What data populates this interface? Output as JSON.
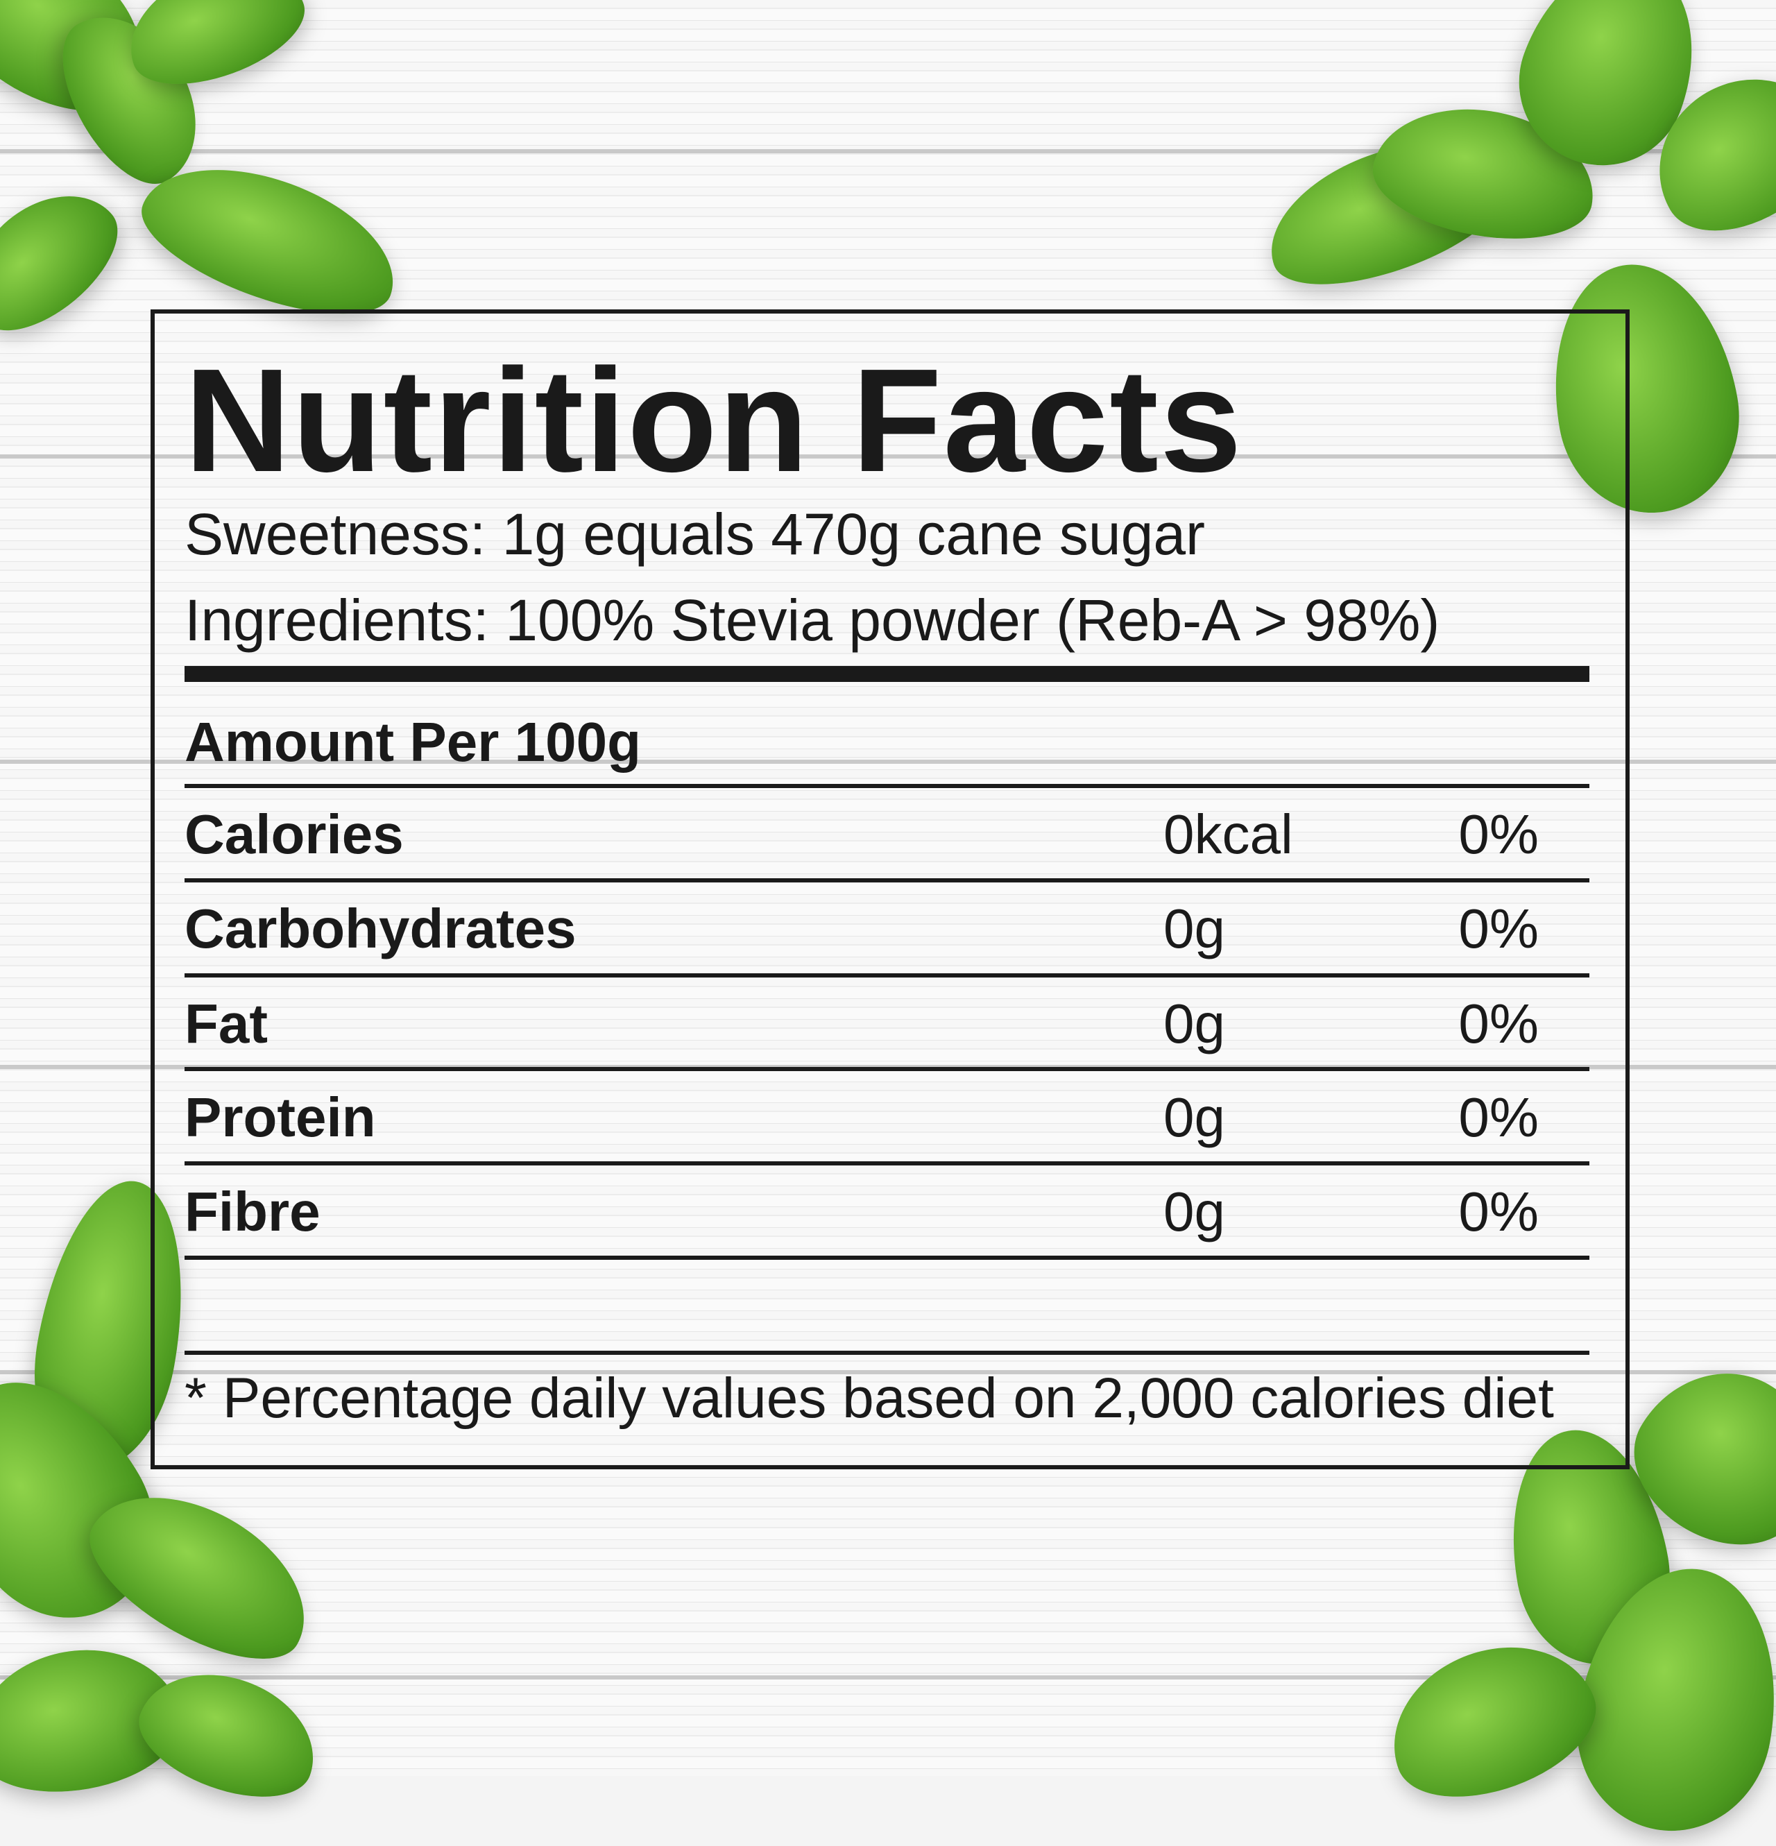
{
  "label": {
    "title": "Nutrition Facts",
    "sweetness": "Sweetness: 1g equals 470g cane sugar",
    "ingredients": "Ingredients: 100% Stevia powder (Reb-A > 98%)",
    "amount_per": "Amount Per 100g",
    "rows": [
      {
        "name": "Calories",
        "value": "0kcal",
        "percent": "0%"
      },
      {
        "name": "Carbohydrates",
        "value": "0g",
        "percent": "0%"
      },
      {
        "name": "Fat",
        "value": "0g",
        "percent": "0%"
      },
      {
        "name": "Protein",
        "value": "0g",
        "percent": "0%"
      },
      {
        "name": "Fibre",
        "value": "0g",
        "percent": "0%"
      }
    ],
    "footnote": "* Percentage daily values based on 2,000 calories diet"
  },
  "colors": {
    "leaf": "#5aa82a",
    "text": "#1a1a1a",
    "background": "#f4f4f4"
  }
}
